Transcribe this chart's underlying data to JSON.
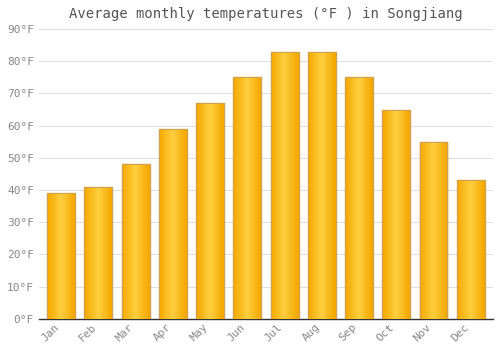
{
  "title": "Average monthly temperatures (°F ) in Songjiang",
  "months": [
    "Jan",
    "Feb",
    "Mar",
    "Apr",
    "May",
    "Jun",
    "Jul",
    "Aug",
    "Sep",
    "Oct",
    "Nov",
    "Dec"
  ],
  "values": [
    39,
    41,
    48,
    59,
    67,
    75,
    83,
    83,
    75,
    65,
    55,
    43
  ],
  "bar_color_left": "#F5A800",
  "bar_color_center": "#FFD040",
  "bar_color_right": "#F5A800",
  "bar_edge_color": "#C8A060",
  "background_color": "#FFFFFF",
  "grid_color": "#E0E0E0",
  "ylim": [
    0,
    90
  ],
  "ytick_step": 10,
  "title_fontsize": 10,
  "tick_fontsize": 8,
  "tick_color": "#888888",
  "title_color": "#555555",
  "font_family": "monospace",
  "bar_width": 0.75
}
